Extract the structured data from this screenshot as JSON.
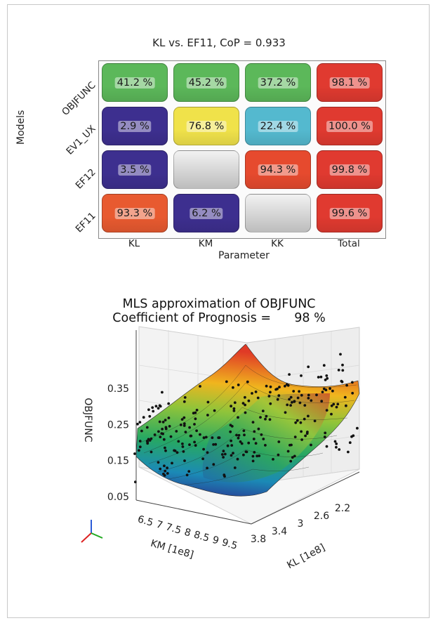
{
  "chart_data": [
    {
      "type": "heatmap",
      "title": "KL vs. EF11, CoP = 0.933",
      "xlabel": "Parameter",
      "ylabel": "Models",
      "columns": [
        "KL",
        "KM",
        "KK",
        "Total"
      ],
      "rows": [
        "OBJFUNC",
        "EV1_UX",
        "EF12",
        "EF11"
      ],
      "cells": [
        [
          {
            "value": 41.2,
            "label": "41.2 %",
            "color": "#5cb85a"
          },
          {
            "value": 45.2,
            "label": "45.2 %",
            "color": "#5cb85a"
          },
          {
            "value": 37.2,
            "label": "37.2 %",
            "color": "#5cb85a"
          },
          {
            "value": 98.1,
            "label": "98.1 %",
            "color": "#e03a30"
          }
        ],
        [
          {
            "value": 2.9,
            "label": "2.9 %",
            "color": "#3d2f8f"
          },
          {
            "value": 76.8,
            "label": "76.8 %",
            "color": "#f0e24a"
          },
          {
            "value": 22.4,
            "label": "22.4 %",
            "color": "#54b9cf"
          },
          {
            "value": 100.0,
            "label": "100.0 %",
            "color": "#e03a30"
          }
        ],
        [
          {
            "value": 3.5,
            "label": "3.5 %",
            "color": "#3d2f8f"
          },
          {
            "value": null,
            "label": "",
            "color": "#d6d6d6"
          },
          {
            "value": 94.3,
            "label": "94.3 %",
            "color": "#e64a2e"
          },
          {
            "value": 99.8,
            "label": "99.8 %",
            "color": "#e03a30"
          }
        ],
        [
          {
            "value": 93.3,
            "label": "93.3 %",
            "color": "#e85a30"
          },
          {
            "value": 6.2,
            "label": "6.2 %",
            "color": "#3d2f8f"
          },
          {
            "value": null,
            "label": "",
            "color": "#d6d6d6"
          },
          {
            "value": 99.6,
            "label": "99.6 %",
            "color": "#e03a30"
          }
        ]
      ]
    },
    {
      "type": "surface3d",
      "title": "MLS approximation of OBJFUNC",
      "subtitle_label": "Coefficient of Prognosis =",
      "subtitle_value": "98 %",
      "zlabel": "OBJFUNC",
      "zticks": [
        "0.35",
        "0.25",
        "0.15",
        "0.05"
      ],
      "xlabel": "KM [1e8]",
      "xticks": [
        "6.5",
        "7",
        "7.5",
        "8",
        "8.5",
        "9",
        "9.5"
      ],
      "ylabel": "KL [1e8]",
      "yticks": [
        "3.8",
        "3.4",
        "3",
        "2.6",
        "2.2"
      ]
    }
  ]
}
